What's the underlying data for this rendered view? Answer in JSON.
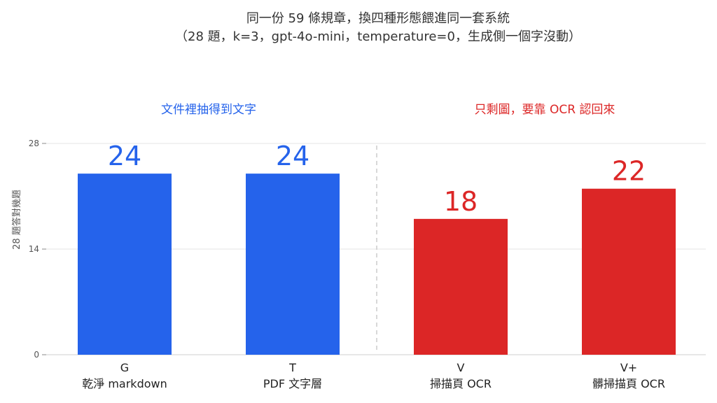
{
  "chart_data": {
    "type": "bar",
    "title_line1": "同一份 59 條規章，換四種形態餵進同一套系統",
    "title_line2": "（28 題，k=3，gpt-4o-mini，temperature=0，生成側一個字沒動）",
    "ylabel": "28 題答對幾題",
    "ylim": [
      0,
      28
    ],
    "yticks": [
      0,
      14,
      28
    ],
    "groups": [
      {
        "label": "文件裡抽得到文字",
        "color": "#2563EB"
      },
      {
        "label": "只剩圖，要靠 OCR 認回來",
        "color": "#DC2626"
      }
    ],
    "bars": [
      {
        "code": "G",
        "desc": "乾淨 markdown",
        "value": 24,
        "color": "#2563EB"
      },
      {
        "code": "T",
        "desc": "PDF 文字層",
        "value": 24,
        "color": "#2563EB"
      },
      {
        "code": "V",
        "desc": "掃描頁 OCR",
        "value": 18,
        "color": "#DC2626"
      },
      {
        "code": "V+",
        "desc": "髒掃描頁 OCR",
        "value": 22,
        "color": "#DC2626"
      }
    ],
    "grid": true,
    "legend": "none"
  }
}
